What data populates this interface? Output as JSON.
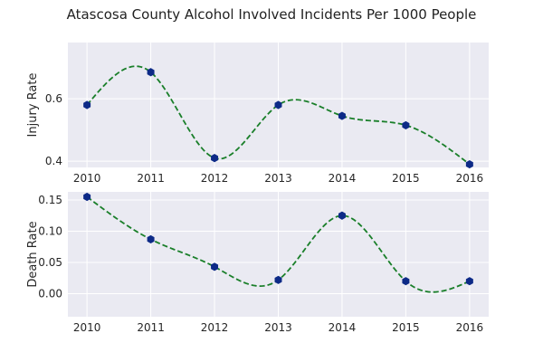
{
  "figure": {
    "title": "Atascosa County Alcohol Involved Incidents Per 1000 People"
  },
  "style": {
    "plot_bg": "#EAEAF2",
    "grid_color": "#FFFFFF",
    "line_color": "#1A7F2A",
    "marker_color": "#0D2A87"
  },
  "chart_data": [
    {
      "type": "line",
      "ylabel": "Injury Rate",
      "x": [
        2010,
        2011,
        2012,
        2013,
        2014,
        2015,
        2016
      ],
      "y": [
        0.58,
        0.685,
        0.41,
        0.58,
        0.545,
        0.515,
        0.39
      ],
      "xlim": [
        2009.7,
        2016.3
      ],
      "ylim": [
        0.38,
        0.78
      ],
      "xticks": [
        2010,
        2011,
        2012,
        2013,
        2014,
        2015,
        2016
      ],
      "yticks": [
        0.4,
        0.6
      ],
      "ytick_labels": [
        "0.4",
        "0.6"
      ],
      "grid": true,
      "line_style": "dashed smooth curve",
      "marker": "hexagon"
    },
    {
      "type": "line",
      "ylabel": "Death Rate",
      "x": [
        2010,
        2011,
        2012,
        2013,
        2014,
        2015,
        2016
      ],
      "y": [
        0.155,
        0.087,
        0.043,
        0.022,
        0.125,
        0.02,
        0.02
      ],
      "xlim": [
        2009.7,
        2016.3
      ],
      "ylim": [
        -0.037,
        0.163
      ],
      "xticks": [
        2010,
        2011,
        2012,
        2013,
        2014,
        2015,
        2016
      ],
      "yticks": [
        0.0,
        0.05,
        0.1,
        0.15
      ],
      "ytick_labels": [
        "0.00",
        "0.05",
        "0.10",
        "0.15"
      ],
      "grid": true,
      "line_style": "dashed smooth curve",
      "marker": "hexagon"
    }
  ]
}
